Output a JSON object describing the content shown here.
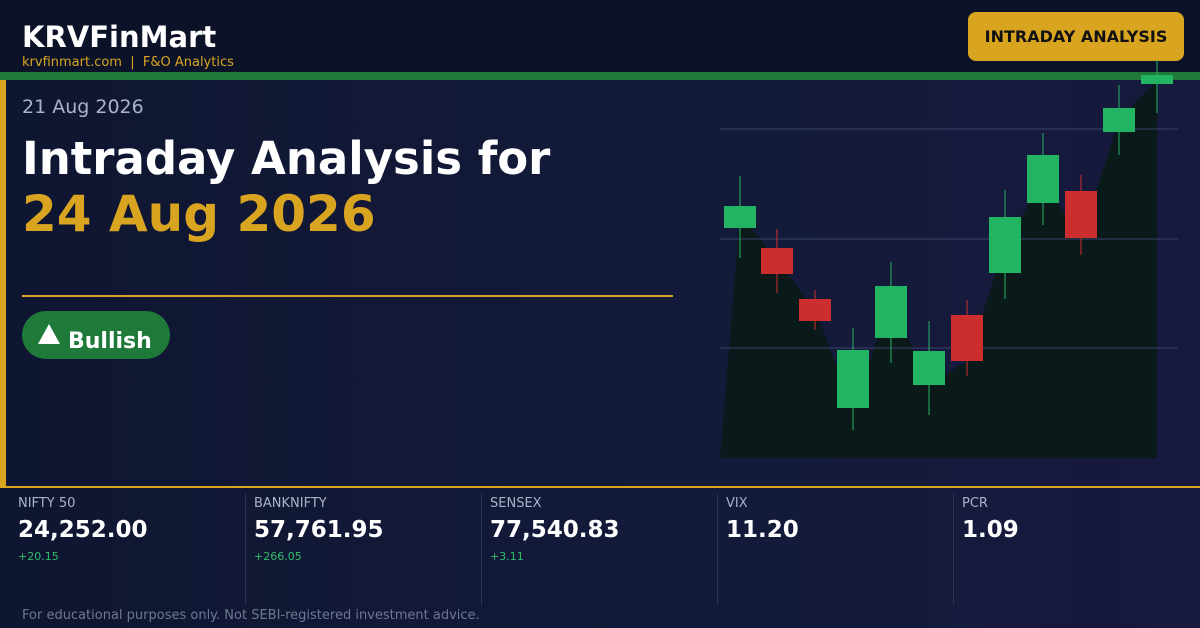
{
  "header": {
    "brand": "KRVFinMart",
    "tagline": "krvfinmart.com  |  F&O Analytics",
    "badge": "INTRADAY ANALYSIS"
  },
  "hero": {
    "date": "21 Aug 2026",
    "heading": "Intraday Analysis for",
    "target_date": "24 Aug 2026",
    "sentiment": "Bullish"
  },
  "stats": [
    {
      "label": "NIFTY 50",
      "value": "24,252.00",
      "change": "+20.15"
    },
    {
      "label": "BANKNIFTY",
      "value": "57,761.95",
      "change": "+266.05"
    },
    {
      "label": "SENSEX",
      "value": "77,540.83",
      "change": "+3.11"
    },
    {
      "label": "VIX",
      "value": "11.20"
    },
    {
      "label": "PCR",
      "value": "1.09"
    }
  ],
  "footer": {
    "disclaimer": "For educational purposes only. Not SEBI-registered investment advice."
  }
}
